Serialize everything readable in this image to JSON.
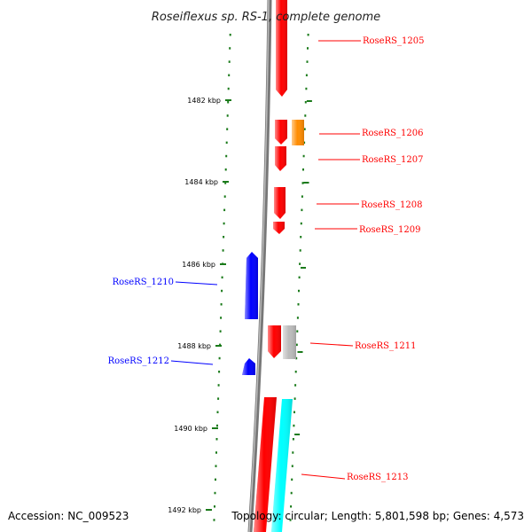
{
  "title": "Roseiflexus sp. RS-1, complete genome",
  "footer": {
    "accession": "Accession: NC_009523",
    "topology": "Topology: circular; Length: 5,801,598 bp; Genes: 4,573"
  },
  "colors": {
    "forward": "#ff0000",
    "reverse": "#0000ff",
    "rna": "#ff8c00",
    "other": "#bbbbbb",
    "cyan": "#00ffff",
    "ticks": "#1a7a1a",
    "backbone": "#888888"
  },
  "axis": {
    "labels": [
      "1482 kbp",
      "1484 kbp",
      "1486 kbp",
      "1488 kbp",
      "1490 kbp",
      "1492 kbp"
    ]
  },
  "genes": [
    {
      "label": "RoseRS_1205",
      "strand": "forward",
      "color": "forward"
    },
    {
      "label": "RoseRS_1206",
      "strand": "forward",
      "color": "forward"
    },
    {
      "label": "",
      "strand": "forward",
      "color": "rna"
    },
    {
      "label": "RoseRS_1207",
      "strand": "forward",
      "color": "forward"
    },
    {
      "label": "RoseRS_1208",
      "strand": "forward",
      "color": "forward"
    },
    {
      "label": "RoseRS_1209",
      "strand": "forward",
      "color": "forward"
    },
    {
      "label": "RoseRS_1210",
      "strand": "reverse",
      "color": "reverse"
    },
    {
      "label": "RoseRS_1211",
      "strand": "forward",
      "color": "forward"
    },
    {
      "label": "",
      "strand": "forward",
      "color": "other"
    },
    {
      "label": "RoseRS_1212",
      "strand": "reverse",
      "color": "reverse"
    },
    {
      "label": "RoseRS_1213",
      "strand": "forward",
      "color": "forward"
    },
    {
      "label": "",
      "strand": "forward",
      "color": "cyan"
    }
  ]
}
